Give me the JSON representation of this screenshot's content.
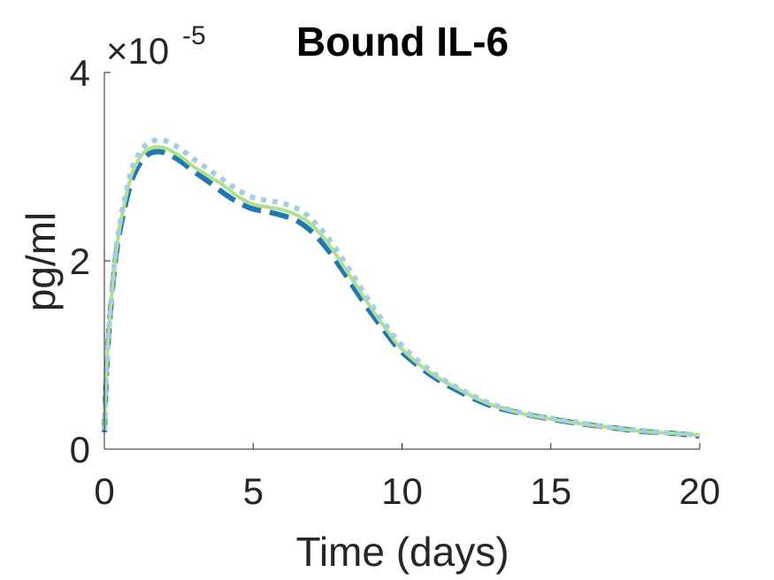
{
  "chart_data": {
    "type": "line",
    "title": "Bound IL-6",
    "xlabel": "Time (days)",
    "ylabel": "pg/ml",
    "exponent_prefix": "×10",
    "exponent_power": "-5",
    "xlim": [
      0,
      20
    ],
    "ylim": [
      0,
      4
    ],
    "xticks": [
      "0",
      "5",
      "10",
      "15",
      "20"
    ],
    "yticks": [
      "0",
      "2",
      "4"
    ],
    "grid": false,
    "legend": "none",
    "series": [
      {
        "color": "#1f77b4",
        "style": "dashed",
        "x": [
          0,
          0.1,
          0.3,
          0.5,
          0.8,
          1.0,
          1.3,
          1.6,
          2.0,
          2.5,
          3.0,
          3.5,
          4.0,
          4.5,
          5.0,
          5.5,
          6.0,
          6.5,
          7.0,
          7.5,
          8.0,
          8.5,
          9.0,
          9.5,
          10.0,
          11.0,
          12.0,
          13.0,
          14.0,
          15.0,
          16.0,
          17.0,
          18.0,
          19.0,
          20.0
        ],
        "y": [
          0.18,
          1.0,
          1.8,
          2.28,
          2.72,
          2.92,
          3.08,
          3.15,
          3.15,
          3.07,
          2.95,
          2.84,
          2.72,
          2.62,
          2.55,
          2.52,
          2.48,
          2.42,
          2.3,
          2.12,
          1.9,
          1.66,
          1.43,
          1.22,
          1.03,
          0.78,
          0.6,
          0.46,
          0.38,
          0.32,
          0.27,
          0.23,
          0.19,
          0.17,
          0.14
        ]
      },
      {
        "color": "#b2df8a",
        "style": "solid",
        "x": [
          0,
          0.1,
          0.3,
          0.5,
          0.8,
          1.0,
          1.3,
          1.6,
          2.0,
          2.5,
          3.0,
          3.5,
          4.0,
          4.5,
          5.0,
          5.5,
          6.0,
          6.5,
          7.0,
          7.5,
          8.0,
          8.5,
          9.0,
          9.5,
          10.0,
          11.0,
          12.0,
          13.0,
          14.0,
          15.0,
          16.0,
          17.0,
          18.0,
          19.0,
          20.0
        ],
        "y": [
          0.2,
          1.02,
          1.82,
          2.32,
          2.78,
          2.98,
          3.14,
          3.2,
          3.2,
          3.12,
          3.0,
          2.9,
          2.8,
          2.68,
          2.6,
          2.57,
          2.54,
          2.48,
          2.37,
          2.19,
          1.96,
          1.72,
          1.48,
          1.26,
          1.06,
          0.8,
          0.62,
          0.47,
          0.38,
          0.32,
          0.27,
          0.23,
          0.19,
          0.17,
          0.15
        ]
      },
      {
        "color": "#a6cee3",
        "style": "dotted",
        "x": [
          0,
          0.1,
          0.3,
          0.5,
          0.8,
          1.0,
          1.3,
          1.6,
          2.0,
          2.5,
          3.0,
          3.5,
          4.0,
          4.5,
          5.0,
          5.5,
          6.0,
          6.5,
          7.0,
          7.5,
          8.0,
          8.5,
          9.0,
          9.5,
          10.0,
          11.0,
          12.0,
          13.0,
          14.0,
          15.0,
          16.0,
          17.0,
          18.0,
          19.0,
          20.0
        ],
        "y": [
          0.2,
          1.03,
          1.85,
          2.36,
          2.83,
          3.04,
          3.2,
          3.27,
          3.28,
          3.2,
          3.08,
          2.97,
          2.86,
          2.75,
          2.67,
          2.64,
          2.61,
          2.55,
          2.43,
          2.25,
          2.02,
          1.77,
          1.52,
          1.3,
          1.1,
          0.82,
          0.63,
          0.48,
          0.39,
          0.33,
          0.28,
          0.23,
          0.2,
          0.17,
          0.15
        ]
      }
    ]
  }
}
